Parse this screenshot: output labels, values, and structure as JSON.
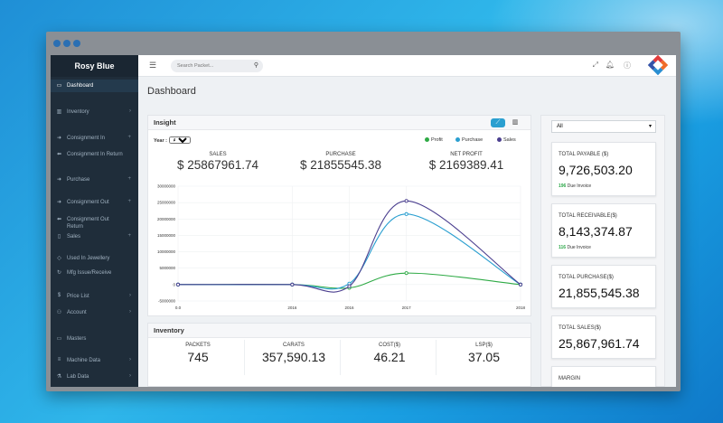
{
  "app": {
    "brand": "Rosy Blue",
    "page_title": "Dashboard"
  },
  "sidebar": {
    "items": [
      {
        "label": "Dashboard",
        "icon": "monitor-icon",
        "suffix": ""
      },
      {
        "label": "Inventory",
        "icon": "bar-chart-icon",
        "suffix": "›"
      },
      {
        "label": "Consignment In",
        "icon": "arrow-right-icon",
        "suffix": "+"
      },
      {
        "label": "Consignment In Return",
        "icon": "arrow-left-icon",
        "suffix": ""
      },
      {
        "label": "Purchase",
        "icon": "arrow-right-icon",
        "suffix": "+"
      },
      {
        "label": "Consignment Out",
        "icon": "arrow-right-icon",
        "suffix": "+"
      },
      {
        "label": "Consignment Out Return",
        "icon": "arrow-left-icon",
        "suffix": ""
      },
      {
        "label": "Sales",
        "icon": "clipboard-icon",
        "suffix": "+"
      },
      {
        "label": "Used In Jewellery",
        "icon": "diamond-icon",
        "suffix": ""
      },
      {
        "label": "Mfg Issue/Receive",
        "icon": "refresh-icon",
        "suffix": ""
      },
      {
        "label": "Price List",
        "icon": "dollar-icon",
        "suffix": "›"
      },
      {
        "label": "Account",
        "icon": "users-icon",
        "suffix": "›"
      },
      {
        "label": "Masters",
        "icon": "monitor-icon",
        "suffix": ""
      },
      {
        "label": "Machine Data",
        "icon": "database-icon",
        "suffix": "›"
      },
      {
        "label": "Lab Data",
        "icon": "flask-icon",
        "suffix": "›"
      }
    ]
  },
  "topbar": {
    "search_placeholder": "Search Packet..."
  },
  "insight": {
    "title": "Insight",
    "year_label": "Year :",
    "year_value": "All",
    "legend": [
      {
        "name": "Profit",
        "color": "#2eaa45"
      },
      {
        "name": "Purchase",
        "color": "#2a9fd0"
      },
      {
        "name": "Sales",
        "color": "#4b3f8f"
      }
    ],
    "kpis": [
      {
        "label": "SALES",
        "currency": "$",
        "value": "25867961.74"
      },
      {
        "label": "PURCHASE",
        "currency": "$",
        "value": "21855545.38"
      },
      {
        "label": "NET PROFIT",
        "currency": "$",
        "value": "2169389.41"
      }
    ]
  },
  "chart_data": {
    "type": "line",
    "x": [
      2015.0,
      2016,
      2016.5,
      2017,
      2018
    ],
    "xticks": [
      "0.0",
      "2016",
      "2016",
      "2017",
      "2018"
    ],
    "yticks": [
      "30000000",
      "25000000",
      "20000000",
      "15000000",
      "10000000",
      "5000000",
      "0",
      "-5000000"
    ],
    "ylim": [
      -5000000,
      30000000
    ],
    "grid": true,
    "legend_position": "top-right",
    "series": [
      {
        "name": "Profit",
        "color": "#2eaa45",
        "values": [
          0,
          0,
          -1000000,
          3500000,
          0
        ]
      },
      {
        "name": "Purchase",
        "color": "#2a9fd0",
        "values": [
          0,
          0,
          300000,
          21500000,
          0
        ]
      },
      {
        "name": "Sales",
        "color": "#4b3f8f",
        "values": [
          0,
          0,
          -500000,
          25500000,
          0
        ]
      }
    ]
  },
  "inventory": {
    "title": "Inventory",
    "columns": [
      {
        "label": "PACKETS",
        "value": "745"
      },
      {
        "label": "CARATS",
        "value": "357,590.13"
      },
      {
        "label": "COST($)",
        "value": "46.21"
      },
      {
        "label": "LSP($)",
        "value": "37.05"
      }
    ]
  },
  "right_panel": {
    "filter_value": "All",
    "stats": [
      {
        "label": "TOTAL PAYABLE ($)",
        "value": "9,726,503.20",
        "sub_count": "196",
        "sub_text": "Due Invoice"
      },
      {
        "label": "TOTAL RECEIVABLE($)",
        "value": "8,143,374.87",
        "sub_count": "116",
        "sub_text": "Due Invoice"
      },
      {
        "label": "TOTAL PURCHASE($)",
        "value": "21,855,545.38",
        "sub_count": "",
        "sub_text": ""
      },
      {
        "label": "TOTAL SALES($)",
        "value": "25,867,961.74",
        "sub_count": "",
        "sub_text": ""
      },
      {
        "label": "MARGIN",
        "value": "",
        "sub_count": "",
        "sub_text": ""
      }
    ]
  },
  "colors": {
    "sidebar_bg": "#1f2d3a",
    "accent": "#2a9fd0",
    "profit": "#2eaa45",
    "sales": "#4b3f8f"
  }
}
